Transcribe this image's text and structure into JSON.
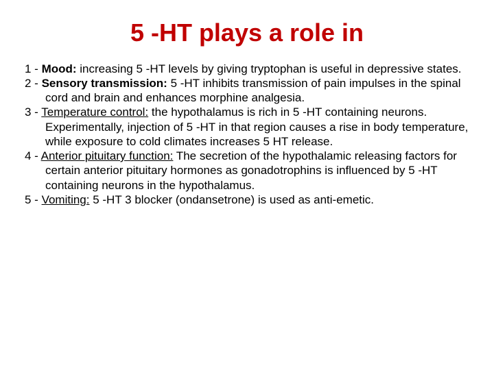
{
  "title": {
    "text": "5 -HT plays a role in",
    "color": "#c00000",
    "fontsize": 36
  },
  "body": {
    "fontsize": 17,
    "text_color": "#000000"
  },
  "items": [
    {
      "num": "1 - ",
      "lead": "Mood:",
      "lead_style": "bold",
      "rest": " increasing 5 -HT levels by giving tryptophan is useful in depressive states."
    },
    {
      "num": "2 - ",
      "lead": "Sensory transmission:",
      "lead_style": "bold",
      "rest": " 5 -HT inhibits transmission of pain impulses in the spinal cord and brain and enhances morphine analgesia."
    },
    {
      "num": "3 - ",
      "lead": "Temperature control:",
      "lead_style": "underline",
      "rest": " the hypothalamus is rich in 5 -HT containing neurons. Experimentally, injection of 5 -HT in that region causes a rise in body temperature, while exposure to cold climates increases 5 HT release."
    },
    {
      "num": "4 - ",
      "lead": "Anterior pituitary function:",
      "lead_style": "underline",
      "rest": " The secretion of the hypothalamic releasing factors for certain anterior pituitary hormones as gonadotrophins is influenced by 5 -HT containing neurons in the hypothalamus."
    },
    {
      "num": "5 - ",
      "lead": "Vomiting:",
      "lead_style": "underline",
      "rest": " 5 -HT 3 blocker (ondansetrone) is used as anti-emetic."
    }
  ]
}
